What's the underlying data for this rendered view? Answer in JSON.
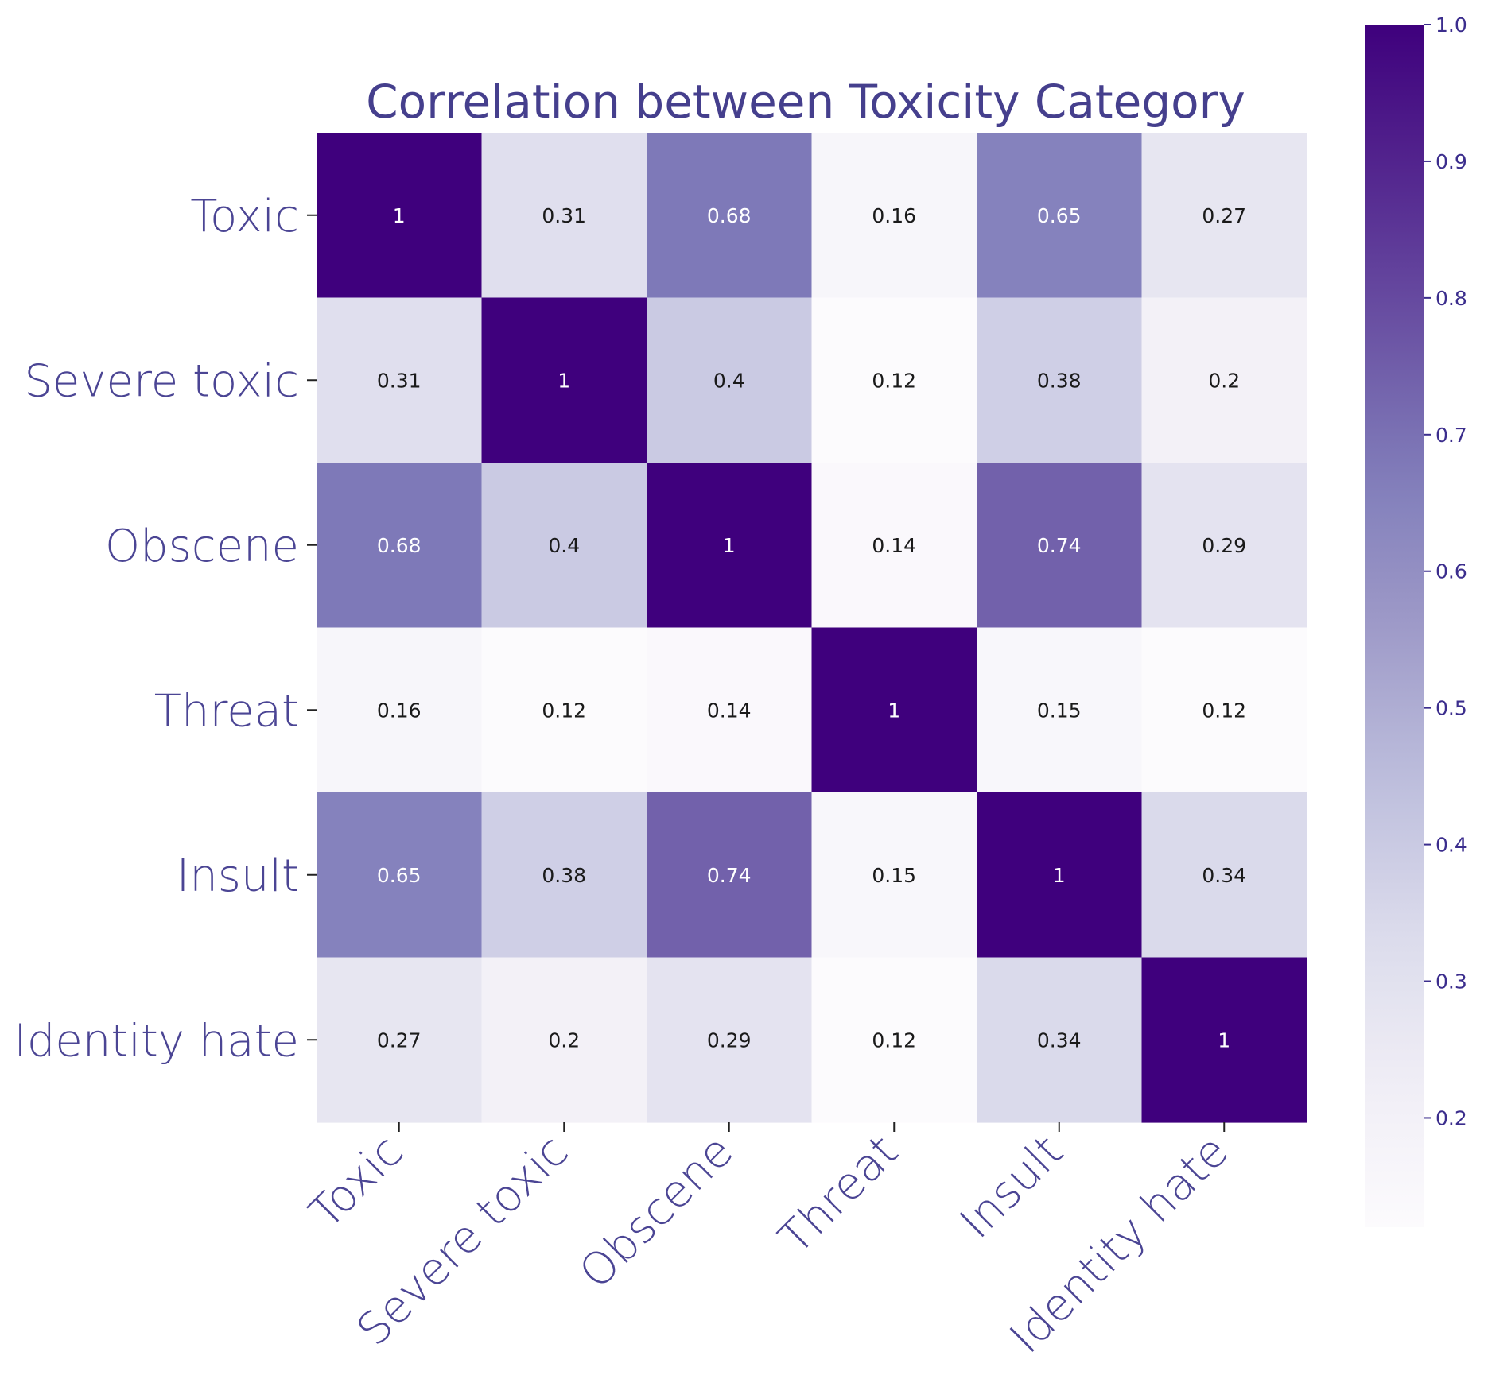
{
  "chart_data": {
    "type": "heatmap",
    "title": "Correlation between Toxicity Category",
    "xlabel": "",
    "ylabel": "",
    "rows": [
      "Toxic",
      "Severe toxic",
      "Obscene",
      "Threat",
      "Insult",
      "Identity hate"
    ],
    "columns": [
      "Toxic",
      "Severe toxic",
      "Obscene",
      "Threat",
      "Insult",
      "Identity hate"
    ],
    "values": [
      [
        1,
        0.31,
        0.68,
        0.16,
        0.65,
        0.27
      ],
      [
        0.31,
        1,
        0.4,
        0.12,
        0.38,
        0.2
      ],
      [
        0.68,
        0.4,
        1,
        0.14,
        0.74,
        0.29
      ],
      [
        0.16,
        0.12,
        0.14,
        1,
        0.15,
        0.12
      ],
      [
        0.65,
        0.38,
        0.74,
        0.15,
        1,
        0.34
      ],
      [
        0.27,
        0.2,
        0.29,
        0.12,
        0.34,
        1
      ]
    ],
    "cell_labels": [
      [
        "1",
        "0.31",
        "0.68",
        "0.16",
        "0.65",
        "0.27"
      ],
      [
        "0.31",
        "1",
        "0.4",
        "0.12",
        "0.38",
        "0.2"
      ],
      [
        "0.68",
        "0.4",
        "1",
        "0.14",
        "0.74",
        "0.29"
      ],
      [
        "0.16",
        "0.12",
        "0.14",
        "1",
        "0.15",
        "0.12"
      ],
      [
        "0.65",
        "0.38",
        "0.74",
        "0.15",
        "1",
        "0.34"
      ],
      [
        "0.27",
        "0.2",
        "0.29",
        "0.12",
        "0.34",
        "1"
      ]
    ],
    "colormap": "Purples",
    "colorbar": {
      "range": [
        0.12,
        1.0
      ],
      "ticks": [
        0.2,
        0.3,
        0.4,
        0.5,
        0.6,
        0.7,
        0.8,
        0.9,
        1.0
      ],
      "tick_labels": [
        "0.2",
        "0.3",
        "0.4",
        "0.5",
        "0.6",
        "0.7",
        "0.8",
        "0.9",
        "1.0"
      ]
    },
    "grid": false,
    "colors": {
      "title": "#453f8d",
      "axis_labels": "#4b4594",
      "colorbar_labels": "#3b2d8d",
      "dark_text": "#1a1a1a",
      "light_text": "#ffffff"
    }
  }
}
